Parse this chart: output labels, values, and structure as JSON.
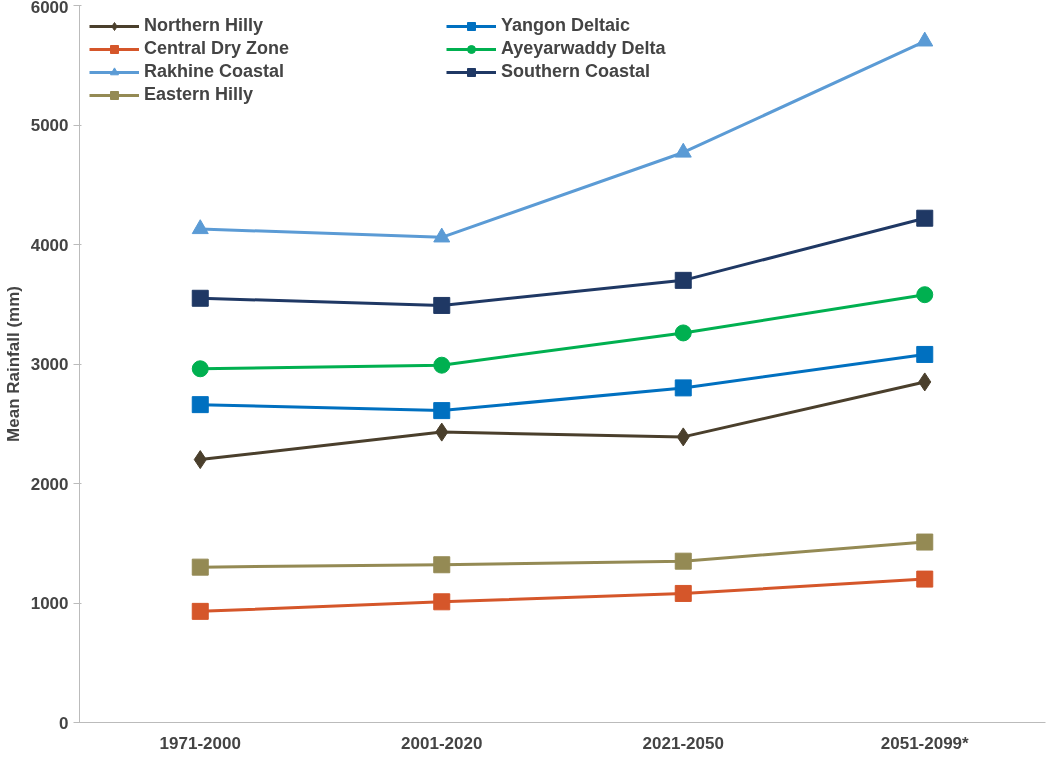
{
  "chart_data": {
    "type": "line",
    "ylabel": "Mean Rainfall (mm)",
    "categories": [
      "1971-2000",
      "2001-2020",
      "2021-2050",
      "2051-2099*"
    ],
    "ylim": [
      0,
      6000
    ],
    "yticks": [
      0,
      1000,
      2000,
      3000,
      4000,
      5000,
      6000
    ],
    "grid": false,
    "legend": "top left",
    "series": [
      {
        "name": "Northern Hilly",
        "color": "#4a3f2c",
        "marker": "diamond",
        "values": [
          2200,
          2430,
          2390,
          2850
        ]
      },
      {
        "name": "Central Dry Zone",
        "color": "#d5562a",
        "marker": "square",
        "values": [
          930,
          1010,
          1080,
          1200
        ]
      },
      {
        "name": "Rakhine Coastal",
        "color": "#5b9bd5",
        "marker": "triangle",
        "values": [
          4130,
          4060,
          4770,
          5700
        ]
      },
      {
        "name": "Eastern Hilly",
        "color": "#948a54",
        "marker": "square",
        "values": [
          1300,
          1320,
          1350,
          1510
        ]
      },
      {
        "name": "Yangon Deltaic",
        "color": "#0070c0",
        "marker": "square",
        "values": [
          2660,
          2610,
          2800,
          3080
        ]
      },
      {
        "name": "Ayeyarwaddy Delta",
        "color": "#00b050",
        "marker": "circle",
        "values": [
          2960,
          2990,
          3260,
          3580
        ]
      },
      {
        "name": "Southern Coastal",
        "color": "#1f3864",
        "marker": "square",
        "values": [
          3550,
          3490,
          3700,
          4220
        ]
      }
    ]
  }
}
